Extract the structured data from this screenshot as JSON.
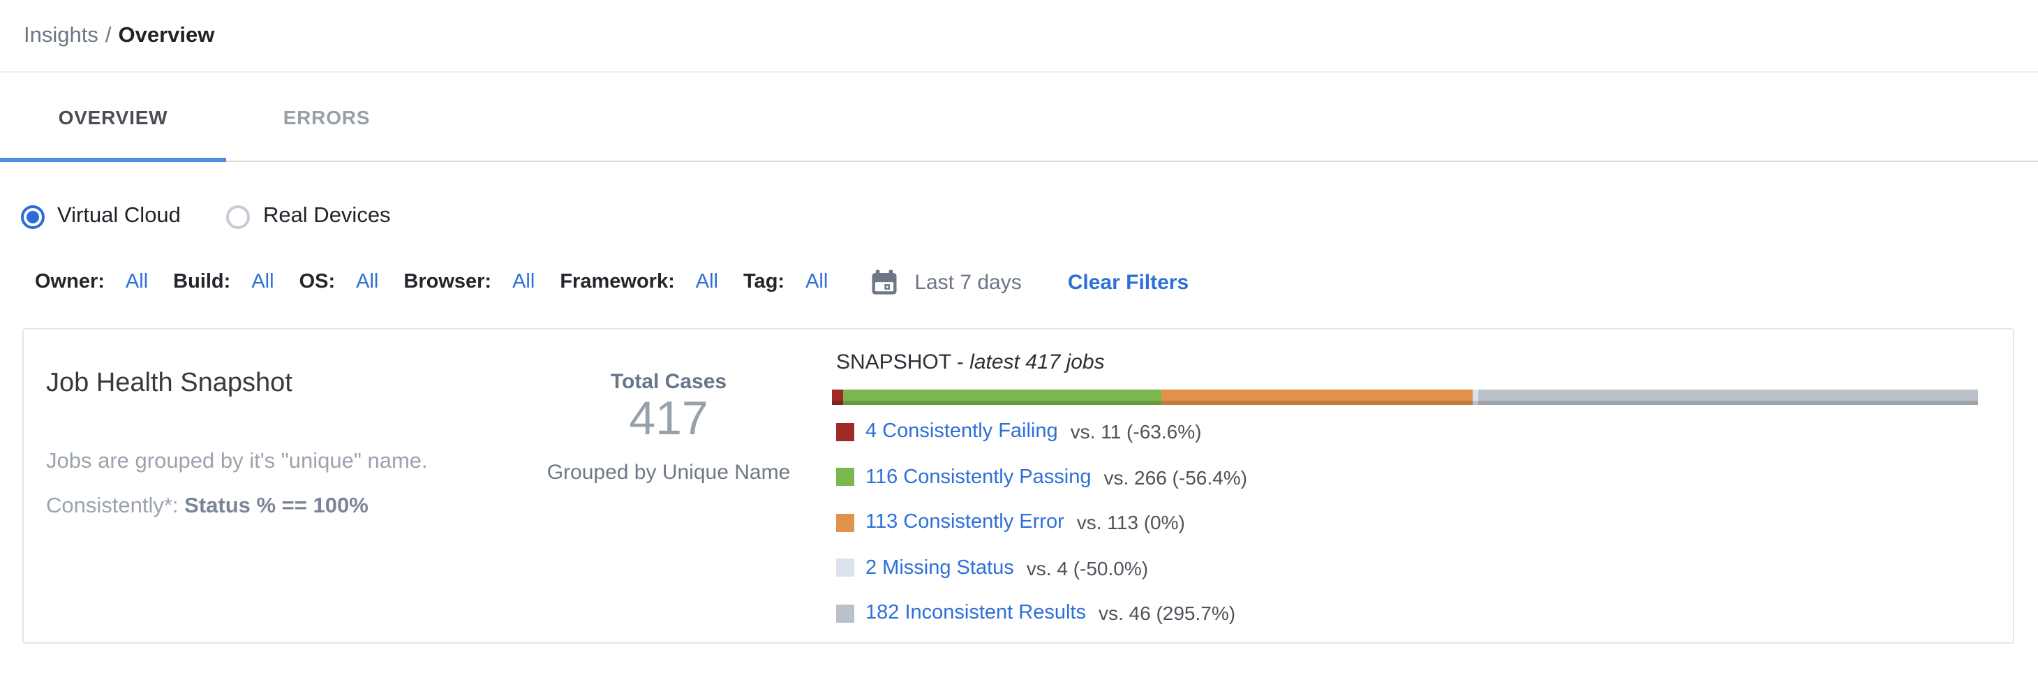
{
  "breadcrumb": {
    "section": "Insights",
    "separator": "/",
    "current": "Overview"
  },
  "tabs": {
    "items": [
      {
        "label": "OVERVIEW",
        "active": true
      },
      {
        "label": "ERRORS",
        "active": false
      }
    ]
  },
  "device_toggle": {
    "options": [
      {
        "label": "Virtual Cloud",
        "selected": true
      },
      {
        "label": "Real Devices",
        "selected": false
      }
    ]
  },
  "filters": {
    "items": [
      {
        "label": "Owner:",
        "value": "All"
      },
      {
        "label": "Build:",
        "value": "All"
      },
      {
        "label": "OS:",
        "value": "All"
      },
      {
        "label": "Browser:",
        "value": "All"
      },
      {
        "label": "Framework:",
        "value": "All"
      },
      {
        "label": "Tag:",
        "value": "All"
      }
    ],
    "calendar_icon": "calendar-icon",
    "date_range": "Last 7 days",
    "clear_label": "Clear Filters"
  },
  "job_health_card": {
    "title": "Job Health Snapshot",
    "description_line1": "Jobs are grouped by it's \"unique\" name.",
    "description_line2_prefix": "Consistently*: ",
    "description_line2_bold": "Status % == 100%",
    "total_cases_label": "Total Cases",
    "total_cases_value": "417",
    "grouped_by_label": "Grouped by Unique Name"
  },
  "chart_data": {
    "type": "bar",
    "variant": "horizontal-stacked",
    "title_prefix": "SNAPSHOT - ",
    "title_italic": "latest 417 jobs",
    "total_jobs": 417,
    "legend_position": "below-bar",
    "segments": [
      {
        "name": "Consistently Failing",
        "label": "4 Consistently Failing",
        "value": 4,
        "previous": 11,
        "comparison": "vs. 11 (-63.6%)",
        "color": "#9d2a24"
      },
      {
        "name": "Consistently Passing",
        "label": "116 Consistently Passing",
        "value": 116,
        "previous": 266,
        "comparison": "vs. 266 (-56.4%)",
        "color": "#7ab74e"
      },
      {
        "name": "Consistently Error",
        "label": "113 Consistently Error",
        "value": 113,
        "previous": 113,
        "comparison": "vs. 113 (0%)",
        "color": "#e2914a"
      },
      {
        "name": "Missing Status",
        "label": "2 Missing Status",
        "value": 2,
        "previous": 4,
        "comparison": "vs. 4 (-50.0%)",
        "color": "#dbe2ee"
      },
      {
        "name": "Inconsistent Results",
        "label": "182 Inconsistent Results",
        "value": 182,
        "previous": 46,
        "comparison": "vs. 46 (295.7%)",
        "color": "#bac1c9"
      }
    ]
  },
  "theme": {
    "link_blue": "#2e6fd8",
    "tab_underline_blue": "#4a90e2",
    "radio_blue": "#2b6cd9",
    "icon_gray": "#6e7787"
  }
}
